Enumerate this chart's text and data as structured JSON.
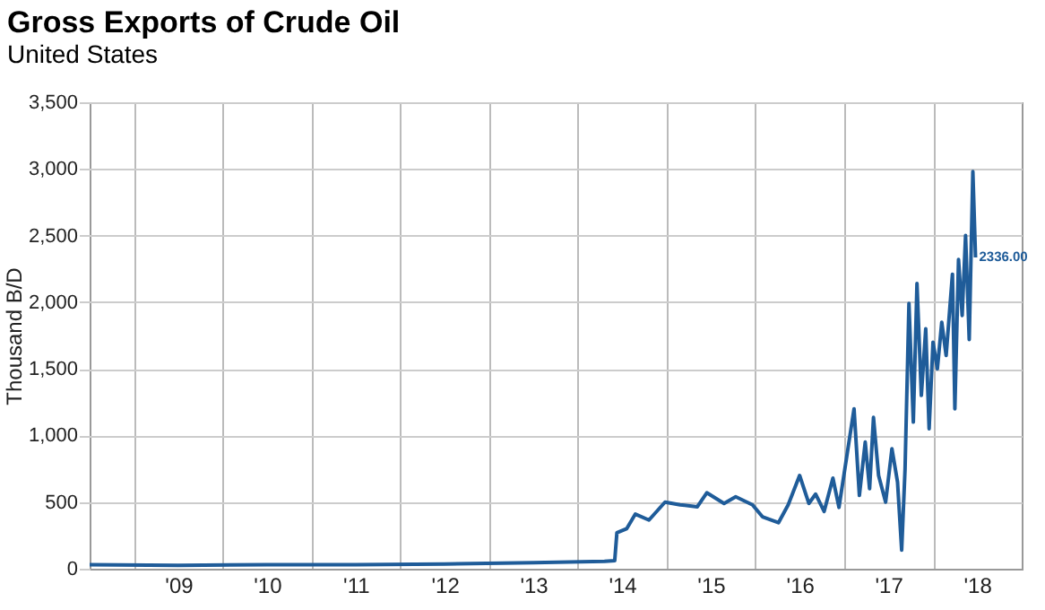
{
  "chart_data": {
    "type": "line",
    "title": "Gross Exports of Crude Oil",
    "subtitle": "United States",
    "ylabel": "Thousand B/D",
    "x": [
      "2008-07-01",
      "2009-07-01",
      "2010-07-01",
      "2011-07-01",
      "2012-07-01",
      "2013-07-01",
      "2014-04-20",
      "2014-06-01",
      "2014-06-10",
      "2014-07-20",
      "2014-08-25",
      "2014-10-20",
      "2014-12-25",
      "2015-02-25",
      "2015-05-07",
      "2015-06-15",
      "2015-08-25",
      "2015-10-12",
      "2015-12-20",
      "2016-01-30",
      "2016-04-05",
      "2016-05-15",
      "2016-07-01",
      "2016-08-08",
      "2016-09-05",
      "2016-10-10",
      "2016-11-15",
      "2016-12-10",
      "2017-02-10",
      "2017-03-04",
      "2017-03-28",
      "2017-04-15",
      "2017-05-01",
      "2017-05-22",
      "2017-06-20",
      "2017-07-16",
      "2017-08-08",
      "2017-08-25",
      "2017-09-08",
      "2017-09-24",
      "2017-10-12",
      "2017-10-27",
      "2017-11-14",
      "2017-12-02",
      "2017-12-16",
      "2018-01-01",
      "2018-01-19",
      "2018-02-06",
      "2018-02-24",
      "2018-03-22",
      "2018-04-01",
      "2018-04-16",
      "2018-05-01",
      "2018-05-15",
      "2018-05-30",
      "2018-06-14",
      "2018-06-25"
    ],
    "series": [
      {
        "color": "#1f5c99",
        "values": [
          30,
          25,
          30,
          30,
          35,
          45,
          55,
          60,
          270,
          300,
          410,
          365,
          500,
          480,
          465,
          570,
          490,
          540,
          480,
          390,
          345,
          480,
          700,
          490,
          560,
          430,
          680,
          460,
          1200,
          550,
          950,
          600,
          1135,
          700,
          500,
          900,
          650,
          140,
          750,
          1990,
          1100,
          2140,
          1300,
          1800,
          1050,
          1700,
          1500,
          1850,
          1600,
          2210,
          1200,
          2320,
          1900,
          2500,
          1720,
          2980,
          2336
        ]
      }
    ],
    "annotations": [
      {
        "text": "2336.00",
        "x": "2018-06-25",
        "y": 2336
      }
    ],
    "xlim": [
      "2008-07-01",
      "2019-01-01"
    ],
    "xticks": [
      {
        "value": "2009-01-01",
        "label": null
      },
      {
        "value": "2009-07-01",
        "label": "'09"
      },
      {
        "value": "2010-01-01",
        "label": null
      },
      {
        "value": "2010-07-01",
        "label": "'10"
      },
      {
        "value": "2011-01-01",
        "label": null
      },
      {
        "value": "2011-07-01",
        "label": "'11"
      },
      {
        "value": "2012-01-01",
        "label": null
      },
      {
        "value": "2012-07-01",
        "label": "'12"
      },
      {
        "value": "2013-01-01",
        "label": null
      },
      {
        "value": "2013-07-01",
        "label": "'13"
      },
      {
        "value": "2014-01-01",
        "label": null
      },
      {
        "value": "2014-07-01",
        "label": "'14"
      },
      {
        "value": "2015-01-01",
        "label": null
      },
      {
        "value": "2015-07-01",
        "label": "'15"
      },
      {
        "value": "2016-01-01",
        "label": null
      },
      {
        "value": "2016-07-01",
        "label": "'16"
      },
      {
        "value": "2017-01-01",
        "label": null
      },
      {
        "value": "2017-07-01",
        "label": "'17"
      },
      {
        "value": "2018-01-01",
        "label": null
      },
      {
        "value": "2018-07-01",
        "label": "'18"
      }
    ],
    "ylim": [
      0,
      3500
    ],
    "yticks": [
      0,
      500,
      {
        "value": 1000,
        "label": "1,000"
      },
      {
        "value": 1500,
        "label": "1,500"
      },
      {
        "value": 2000,
        "label": "2,000"
      },
      {
        "value": 2500,
        "label": "2,500"
      },
      {
        "value": 3000,
        "label": "3,000"
      },
      {
        "value": 3500,
        "label": "3,500"
      }
    ],
    "grid": true
  }
}
